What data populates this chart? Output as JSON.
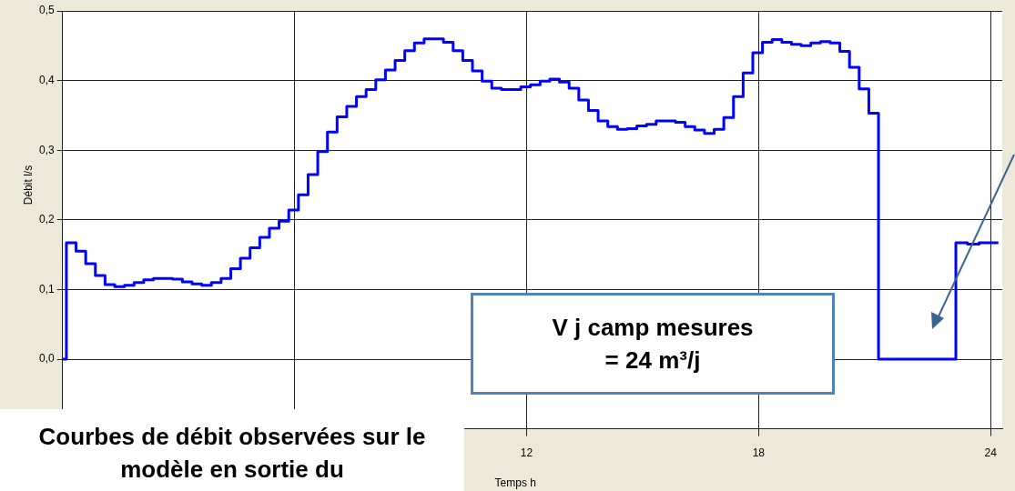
{
  "chart_data": {
    "type": "step",
    "xlabel": "Temps h",
    "ylabel": "Débit l/s",
    "annotations": [
      "V j camp mesures\n= 24 m³/j",
      "Courbes de débit observées sur le modèle en  sortie du"
    ],
    "xlim": [
      0,
      24.3
    ],
    "xticks": [
      {
        "value": 0,
        "label": null
      },
      {
        "value": 6,
        "label": null
      },
      12,
      18,
      24
    ],
    "ylim": [
      -0.1,
      0.5
    ],
    "yticks": [
      {
        "value": 0,
        "label": "0,0"
      },
      {
        "value": 0.1,
        "label": "0,1"
      },
      {
        "value": 0.2,
        "label": "0,2"
      },
      {
        "value": 0.3,
        "label": "0,3"
      },
      {
        "value": 0.4,
        "label": "0,4"
      },
      {
        "value": 0.5,
        "label": "0,5"
      }
    ],
    "grid": true,
    "legend": false,
    "series": [
      {
        "color": "#0000ff",
        "x": [
          0,
          0.1,
          0.35,
          0.6,
          0.85,
          1.1,
          1.35,
          1.6,
          1.85,
          2.1,
          2.35,
          2.6,
          2.85,
          3.1,
          3.35,
          3.6,
          3.85,
          4.1,
          4.35,
          4.6,
          4.85,
          5.1,
          5.35,
          5.6,
          5.85,
          6.1,
          6.35,
          6.6,
          6.85,
          7.1,
          7.35,
          7.6,
          7.85,
          8.1,
          8.35,
          8.6,
          8.85,
          9.1,
          9.35,
          9.6,
          9.85,
          10.1,
          10.35,
          10.6,
          10.85,
          11.1,
          11.35,
          11.6,
          11.85,
          12.1,
          12.35,
          12.6,
          12.85,
          13.1,
          13.35,
          13.6,
          13.85,
          14.1,
          14.35,
          14.6,
          14.85,
          15.1,
          15.35,
          15.6,
          15.85,
          16.1,
          16.35,
          16.6,
          16.85,
          17.1,
          17.35,
          17.6,
          17.85,
          18.1,
          18.35,
          18.6,
          18.85,
          19.1,
          19.35,
          19.6,
          19.85,
          20.1,
          20.35,
          20.6,
          20.85,
          21.1,
          23.1,
          23.4,
          23.7,
          24.2
        ],
        "values": [
          0,
          0.167,
          0.155,
          0.137,
          0.12,
          0.107,
          0.104,
          0.106,
          0.11,
          0.114,
          0.116,
          0.116,
          0.115,
          0.111,
          0.108,
          0.106,
          0.11,
          0.116,
          0.13,
          0.145,
          0.16,
          0.175,
          0.188,
          0.198,
          0.214,
          0.236,
          0.265,
          0.298,
          0.326,
          0.348,
          0.363,
          0.377,
          0.387,
          0.401,
          0.415,
          0.429,
          0.443,
          0.454,
          0.46,
          0.46,
          0.455,
          0.443,
          0.429,
          0.414,
          0.399,
          0.389,
          0.387,
          0.387,
          0.391,
          0.394,
          0.399,
          0.402,
          0.398,
          0.389,
          0.372,
          0.357,
          0.342,
          0.334,
          0.33,
          0.331,
          0.335,
          0.337,
          0.342,
          0.342,
          0.34,
          0.334,
          0.329,
          0.324,
          0.33,
          0.347,
          0.377,
          0.411,
          0.44,
          0.455,
          0.459,
          0.455,
          0.452,
          0.45,
          0.454,
          0.456,
          0.454,
          0.442,
          0.419,
          0.388,
          0.353,
          0,
          0.167,
          0.165,
          0.167,
          0.167
        ]
      }
    ]
  }
}
